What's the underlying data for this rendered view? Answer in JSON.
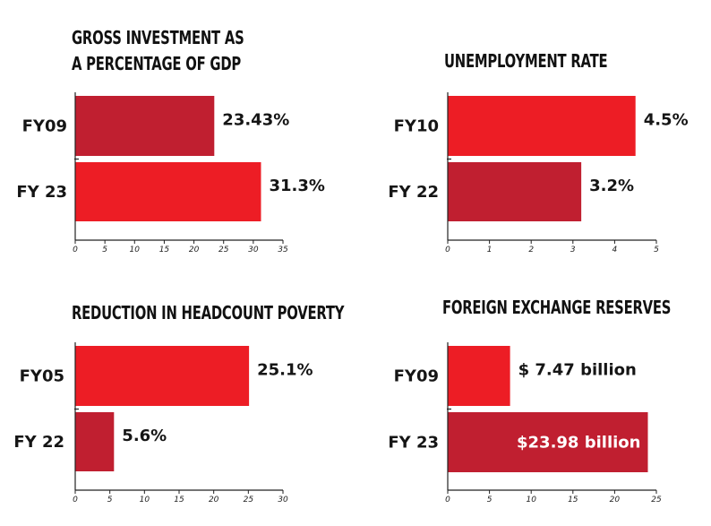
{
  "chart_data": [
    {
      "type": "bar",
      "orientation": "horizontal",
      "title_lines": [
        "GROSS INVESTMENT AS",
        "A PERCENTAGE OF GDP"
      ],
      "categories": [
        "FY09",
        "FY 23"
      ],
      "values": [
        23.43,
        31.3
      ],
      "value_labels": [
        "23.43%",
        "31.3%"
      ],
      "xlim": [
        0,
        35
      ],
      "ticks": [
        0,
        5,
        10,
        15,
        20,
        25,
        30,
        35
      ],
      "colors": [
        "#c01f30",
        "#ed1d25"
      ]
    },
    {
      "type": "bar",
      "orientation": "horizontal",
      "title_lines": [
        "UNEMPLOYMENT RATE"
      ],
      "categories": [
        "FY10",
        "FY 22"
      ],
      "values": [
        4.5,
        3.2
      ],
      "value_labels": [
        "4.5%",
        "3.2%"
      ],
      "xlim": [
        0,
        5
      ],
      "ticks": [
        0,
        1,
        2,
        3,
        4,
        5
      ],
      "colors": [
        "#ed1d25",
        "#c01f30"
      ]
    },
    {
      "type": "bar",
      "orientation": "horizontal",
      "title_lines": [
        "REDUCTION IN HEADCOUNT POVERTY"
      ],
      "categories": [
        "FY05",
        "FY 22"
      ],
      "values": [
        25.1,
        5.6
      ],
      "value_labels": [
        "25.1%",
        "5.6%"
      ],
      "xlim": [
        0,
        30
      ],
      "ticks": [
        0,
        5,
        10,
        15,
        20,
        25,
        30
      ],
      "colors": [
        "#ed1d25",
        "#c01f30"
      ]
    },
    {
      "type": "bar",
      "orientation": "horizontal",
      "title_lines": [
        "FOREIGN EXCHANGE RESERVES"
      ],
      "categories": [
        "FY09",
        "FY 23"
      ],
      "values": [
        7.47,
        23.98
      ],
      "value_labels": [
        "$ 7.47 billion",
        "$23.98 billion"
      ],
      "label_inside": [
        false,
        true
      ],
      "xlim": [
        0,
        25
      ],
      "ticks": [
        0,
        5,
        10,
        15,
        20,
        25
      ],
      "colors": [
        "#ed1d25",
        "#c01f30"
      ]
    }
  ]
}
